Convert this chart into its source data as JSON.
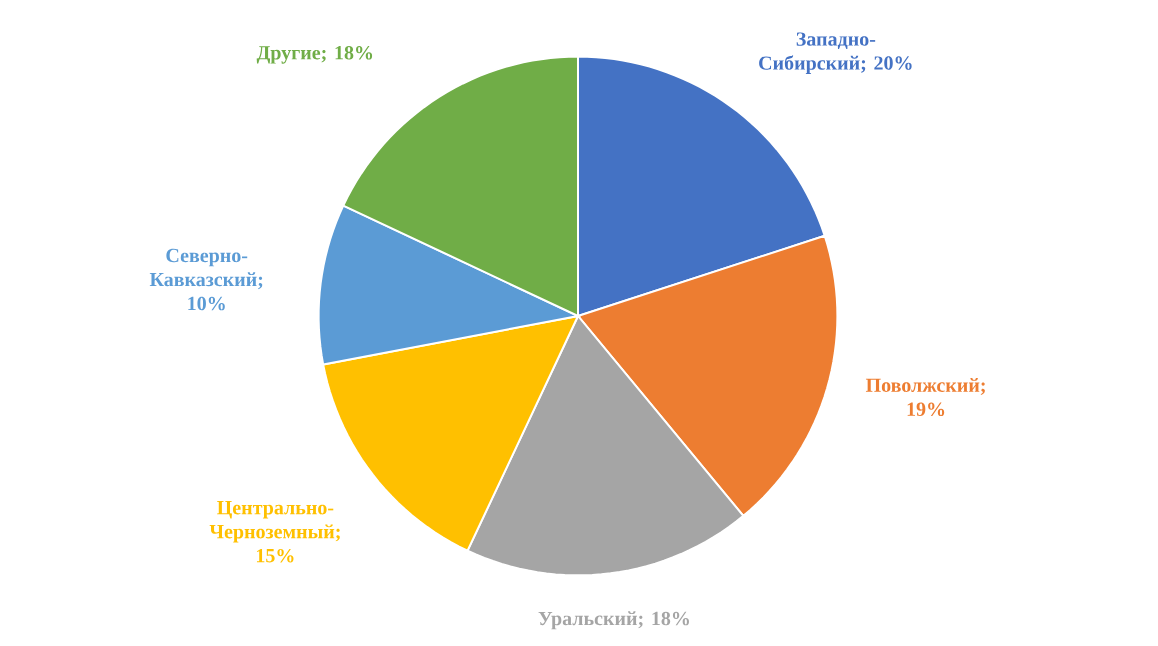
{
  "chart_data": {
    "type": "pie",
    "categories": [
      "Западно-Сибирский",
      "Поволжский",
      "Уральский",
      "Центрально-Черноземный",
      "Северно-Кавказский",
      "Другие"
    ],
    "values": [
      20,
      19,
      18,
      15,
      10,
      18
    ],
    "value_labels": [
      "; 20%",
      "; 19%",
      "; 18%",
      "; 15%",
      "; 10%",
      "; 18%"
    ],
    "colors": [
      "#4472c4",
      "#ed7d31",
      "#a5a5a5",
      "#ffc000",
      "#5b9bd5",
      "#70ad47"
    ],
    "data_labels": true
  }
}
